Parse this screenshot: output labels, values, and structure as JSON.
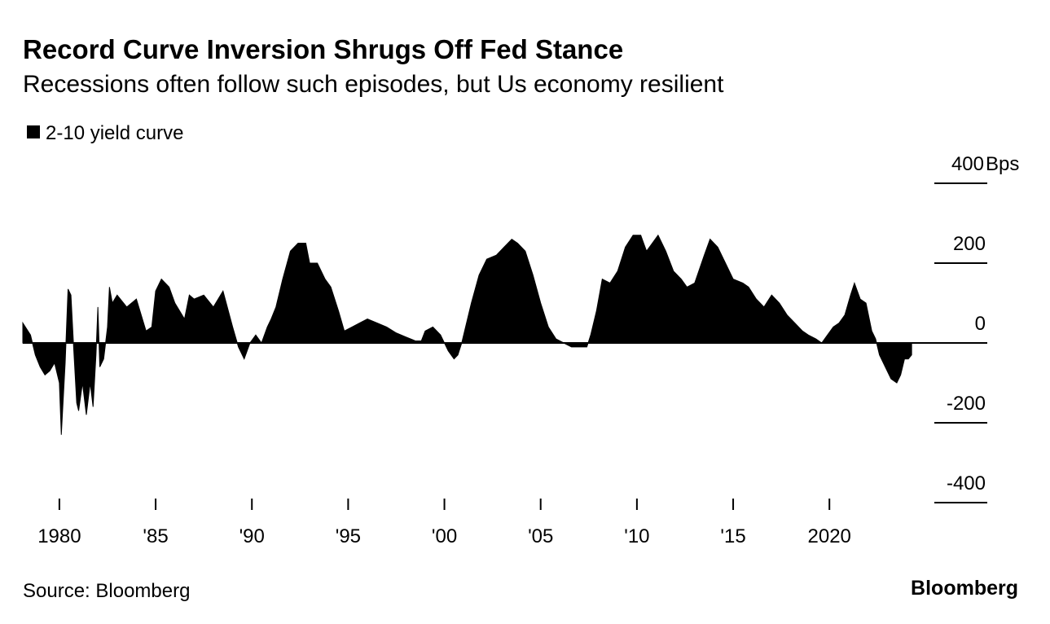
{
  "chart_data": {
    "type": "area",
    "title": "Record Curve Inversion Shrugs Off Fed Stance",
    "subtitle": "Recessions often follow such episodes, but Us economy resilient",
    "y_unit": "Bps",
    "source": "Source: Bloomberg",
    "brand": "Bloomberg",
    "x": [
      1978.1,
      1978.5,
      1978.75,
      1979.0,
      1979.25,
      1979.5,
      1979.75,
      1980.0,
      1980.1,
      1980.3,
      1980.45,
      1980.6,
      1980.75,
      1980.9,
      1981.0,
      1981.2,
      1981.4,
      1981.6,
      1981.75,
      1981.9,
      1982.0,
      1982.1,
      1982.3,
      1982.5,
      1982.6,
      1982.75,
      1983.0,
      1983.5,
      1984.0,
      1984.5,
      1984.8,
      1985.0,
      1985.3,
      1985.7,
      1986.0,
      1986.5,
      1986.75,
      1987.0,
      1987.5,
      1988.0,
      1988.5,
      1989.0,
      1989.3,
      1989.6,
      1989.9,
      1990.2,
      1990.5,
      1990.8,
      1991.0,
      1991.25,
      1991.6,
      1992.0,
      1992.4,
      1992.8,
      1993.0,
      1993.4,
      1993.8,
      1994.1,
      1994.5,
      1994.8,
      1995.2,
      1995.6,
      1996.0,
      1996.5,
      1997.0,
      1997.5,
      1998.0,
      1998.5,
      1998.8,
      1999.0,
      1999.4,
      1999.8,
      2000.2,
      2000.5,
      2000.7,
      2000.9,
      2001.1,
      2001.4,
      2001.8,
      2002.2,
      2002.7,
      2003.1,
      2003.5,
      2003.8,
      2004.2,
      2004.6,
      2005.0,
      2005.4,
      2005.8,
      2006.2,
      2006.6,
      2007.0,
      2007.4,
      2007.6,
      2007.9,
      2008.2,
      2008.6,
      2009.0,
      2009.4,
      2009.8,
      2010.2,
      2010.5,
      2010.8,
      2011.1,
      2011.5,
      2011.9,
      2012.3,
      2012.6,
      2013.0,
      2013.5,
      2013.8,
      2014.2,
      2014.6,
      2015.0,
      2015.5,
      2015.8,
      2016.2,
      2016.6,
      2017.0,
      2017.4,
      2017.8,
      2018.2,
      2018.6,
      2018.9,
      2019.3,
      2019.6,
      2019.9,
      2020.2,
      2020.5,
      2020.8,
      2021.1,
      2021.3,
      2021.6,
      2021.9,
      2022.2,
      2022.4,
      2022.6,
      2022.9,
      2023.2,
      2023.5,
      2023.7,
      2023.9,
      2024.1,
      2024.27
    ],
    "series": [
      {
        "name": "2-10 yield curve",
        "color": "#000000",
        "values": [
          50,
          20,
          -30,
          -60,
          -80,
          -70,
          -50,
          -100,
          -230,
          -50,
          135,
          120,
          -20,
          -150,
          -170,
          -100,
          -180,
          -100,
          -160,
          -30,
          90,
          -60,
          -40,
          40,
          140,
          100,
          120,
          90,
          110,
          30,
          40,
          130,
          160,
          140,
          100,
          60,
          120,
          110,
          120,
          90,
          130,
          40,
          -10,
          -40,
          0,
          20,
          0,
          40,
          60,
          90,
          160,
          230,
          250,
          250,
          200,
          200,
          160,
          140,
          80,
          30,
          40,
          50,
          60,
          50,
          40,
          25,
          15,
          5,
          5,
          30,
          40,
          20,
          -20,
          -40,
          -30,
          0,
          40,
          100,
          170,
          210,
          220,
          240,
          260,
          250,
          230,
          170,
          100,
          40,
          10,
          0,
          -10,
          -10,
          -10,
          20,
          80,
          160,
          150,
          180,
          240,
          270,
          270,
          230,
          250,
          270,
          230,
          180,
          160,
          140,
          150,
          220,
          260,
          240,
          200,
          160,
          150,
          140,
          110,
          90,
          120,
          100,
          70,
          50,
          30,
          20,
          10,
          0,
          20,
          40,
          50,
          70,
          120,
          150,
          110,
          100,
          30,
          10,
          -30,
          -60,
          -90,
          -100,
          -80,
          -40,
          -40,
          -30
        ]
      }
    ],
    "xlim": [
      1978.1,
      2028.2
    ],
    "xticks": [
      1980,
      {
        "value": 1985,
        "label": "'85"
      },
      {
        "value": 1990,
        "label": "'90"
      },
      {
        "value": 1995,
        "label": "'95"
      },
      {
        "value": 2000,
        "label": "'00"
      },
      {
        "value": 2005,
        "label": "'05"
      },
      {
        "value": 2010,
        "label": "'10"
      },
      {
        "value": 2015,
        "label": "'15"
      },
      2020
    ],
    "ylim": [
      -400,
      400
    ],
    "yticks": [
      400,
      200,
      0,
      -200,
      -400
    ]
  }
}
